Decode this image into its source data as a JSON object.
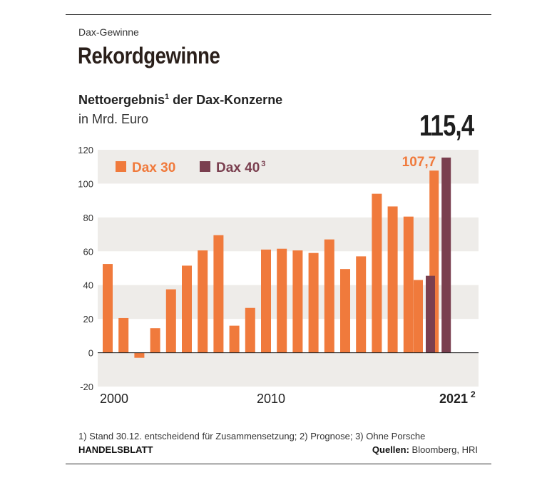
{
  "kicker": "Dax-Gewinne",
  "headline": "Rekordgewinne",
  "subtitle_text": "Nettoergebnis",
  "subtitle_sup": "1",
  "subtitle_rest": " der Dax-Konzerne",
  "unit": "in Mrd. Euro",
  "highlight_value": "115,4",
  "footnote": "1) Stand 30.12. entscheidend für Zusammensetzung; 2) Prognose; 3) Ohne Porsche",
  "brand": "HANDELSBLATT",
  "sources_label": "Quellen:",
  "sources_text": " Bloomberg, HRI",
  "colors": {
    "dax30": "#f07a3c",
    "dax40": "#7a3f4f",
    "band": "#eeece9",
    "text": "#222222"
  },
  "chart_data": {
    "type": "bar",
    "ylim": [
      -20,
      120
    ],
    "yticks": [
      120,
      100,
      80,
      60,
      40,
      20,
      0,
      -20
    ],
    "x_tick_labels": [
      {
        "year": 2000,
        "label": "2000"
      },
      {
        "year": 2010,
        "label": "2010"
      },
      {
        "year": 2021,
        "label": "2021",
        "sup": "2",
        "bold": true
      }
    ],
    "grid": "alternating horizontal bands",
    "legend_position": "top-left",
    "series": [
      {
        "name": "Dax 30",
        "color": "#f07a3c",
        "x": [
          2000,
          2001,
          2002,
          2003,
          2004,
          2005,
          2006,
          2007,
          2008,
          2009,
          2010,
          2011,
          2012,
          2013,
          2014,
          2015,
          2016,
          2017,
          2018,
          2019,
          2020,
          2021
        ],
        "values": [
          52.5,
          20.5,
          -3,
          14.5,
          37.5,
          51.5,
          60.5,
          69.5,
          16,
          26.5,
          61,
          61.5,
          60.5,
          59,
          67,
          49.5,
          57,
          94,
          86.5,
          80.5,
          43,
          107.7
        ]
      },
      {
        "name": "Dax 40",
        "name_sup": "3",
        "color": "#7a3f4f",
        "x": [
          2020,
          2021
        ],
        "values": [
          45.5,
          115.4
        ]
      }
    ],
    "data_labels": [
      {
        "series": "Dax 30",
        "x": 2021,
        "text": "107,7"
      }
    ]
  }
}
